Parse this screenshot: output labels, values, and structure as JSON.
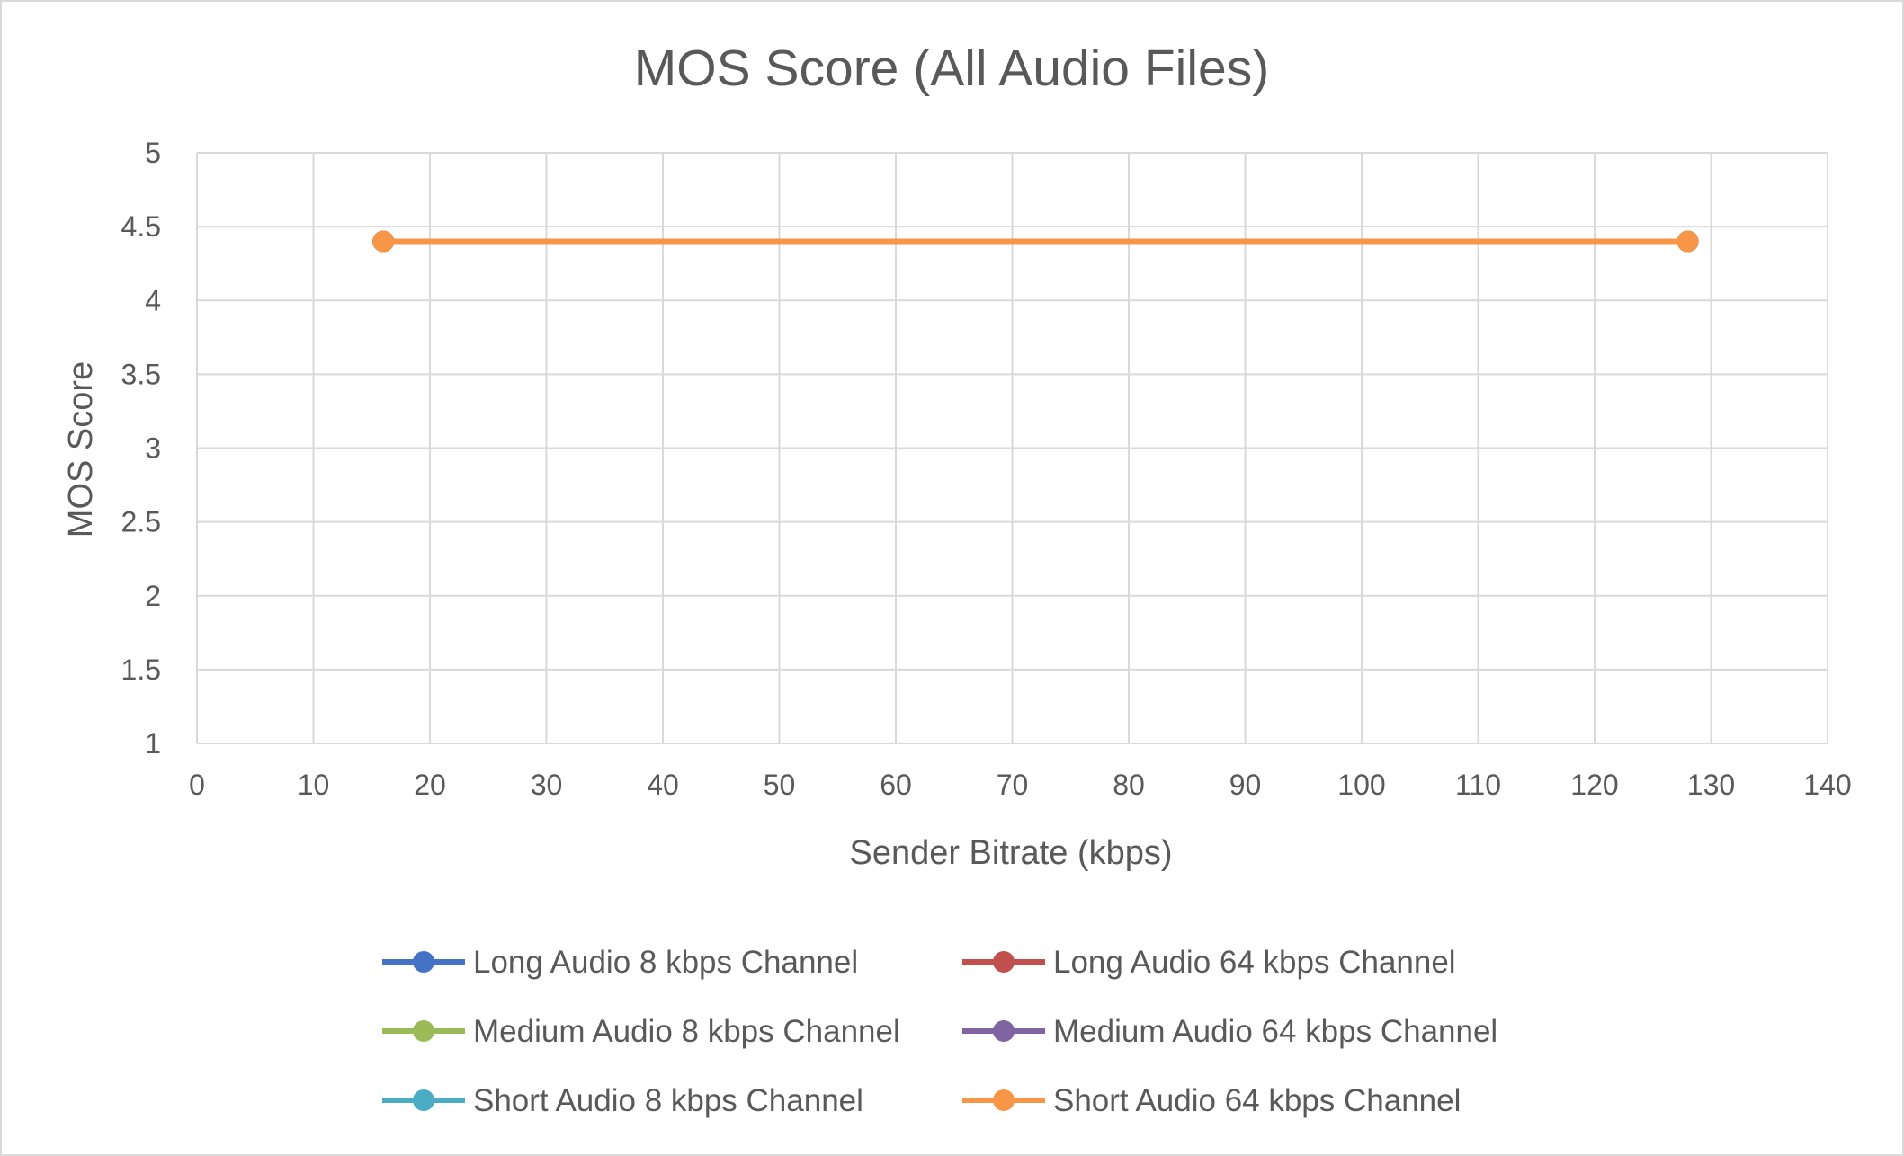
{
  "chart_data": {
    "type": "line",
    "title": "MOS Score (All Audio Files)",
    "xlabel": "Sender Bitrate (kbps)",
    "ylabel": "MOS Score",
    "xlim": [
      0,
      140
    ],
    "ylim": [
      1,
      5
    ],
    "x_ticks": [
      "0",
      "10",
      "20",
      "30",
      "40",
      "50",
      "60",
      "70",
      "80",
      "90",
      "100",
      "110",
      "120",
      "130",
      "140"
    ],
    "y_ticks": [
      "1",
      "1.5",
      "2",
      "2.5",
      "3",
      "3.5",
      "4",
      "4.5",
      "5"
    ],
    "x_tick_values": [
      0,
      10,
      20,
      30,
      40,
      50,
      60,
      70,
      80,
      90,
      100,
      110,
      120,
      130,
      140
    ],
    "y_tick_values": [
      1,
      1.5,
      2,
      2.5,
      3,
      3.5,
      4,
      4.5,
      5
    ],
    "grid": true,
    "legend_position": "bottom",
    "series": [
      {
        "name": "Long Audio 8 kbps Channel",
        "color": "#4472C4",
        "points": [
          [
            16,
            4.4
          ],
          [
            128,
            4.4
          ]
        ]
      },
      {
        "name": "Long Audio 64 kbps Channel",
        "color": "#C0504D",
        "points": [
          [
            16,
            4.4
          ],
          [
            128,
            4.4
          ]
        ]
      },
      {
        "name": "Medium Audio 8 kbps Channel",
        "color": "#9BBB59",
        "points": [
          [
            16,
            4.4
          ],
          [
            128,
            4.4
          ]
        ]
      },
      {
        "name": "Medium Audio 64 kbps Channel",
        "color": "#8064A2",
        "points": [
          [
            16,
            4.4
          ],
          [
            128,
            4.4
          ]
        ]
      },
      {
        "name": "Short Audio 8 kbps Channel",
        "color": "#4BACC6",
        "points": [
          [
            16,
            4.4
          ],
          [
            128,
            4.4
          ]
        ]
      },
      {
        "name": "Short Audio 64 kbps Channel",
        "color": "#F79646",
        "points": [
          [
            16,
            4.4
          ],
          [
            128,
            4.4
          ]
        ]
      }
    ]
  }
}
